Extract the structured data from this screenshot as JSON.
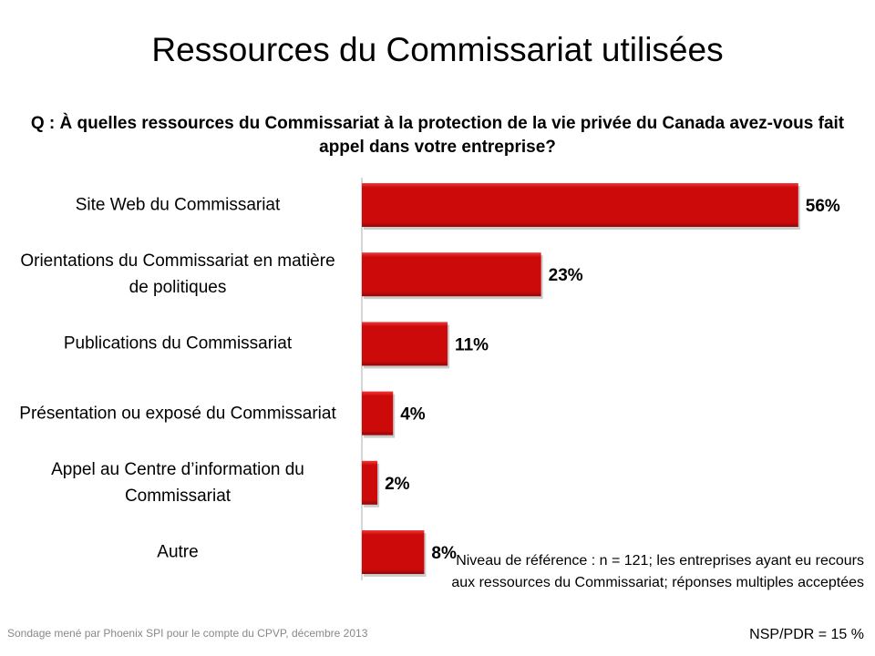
{
  "title": "Ressources du Commissariat utilisées",
  "question": "Q : À quelles ressources du Commissariat à la protection de la vie privée du Canada avez-vous fait appel dans votre entreprise?",
  "chart_data": {
    "type": "bar",
    "orientation": "horizontal",
    "categories": [
      "Site Web du Commissariat",
      "Orientations du Commissariat en matière de politiques",
      "Publications du Commissariat",
      "Présentation ou exposé du Commissariat",
      "Appel au Centre d’information du Commissariat",
      "Autre"
    ],
    "values": [
      56,
      23,
      11,
      4,
      2,
      8
    ],
    "data_labels": [
      "56%",
      "23%",
      "11%",
      "4%",
      "2%",
      "8%"
    ],
    "unit": "%",
    "bar_color": "#cc0a0a",
    "grid": false,
    "xlim": [
      0,
      60
    ]
  },
  "note": "Niveau de référence  : n = 121; les entreprises ayant eu recours aux ressources du Commissariat; réponses multiples acceptées",
  "nsp": "NSP/PDR = 15 %",
  "source": "Sondage mené par Phoenix SPI pour le compte du CPVP, décembre 2013"
}
